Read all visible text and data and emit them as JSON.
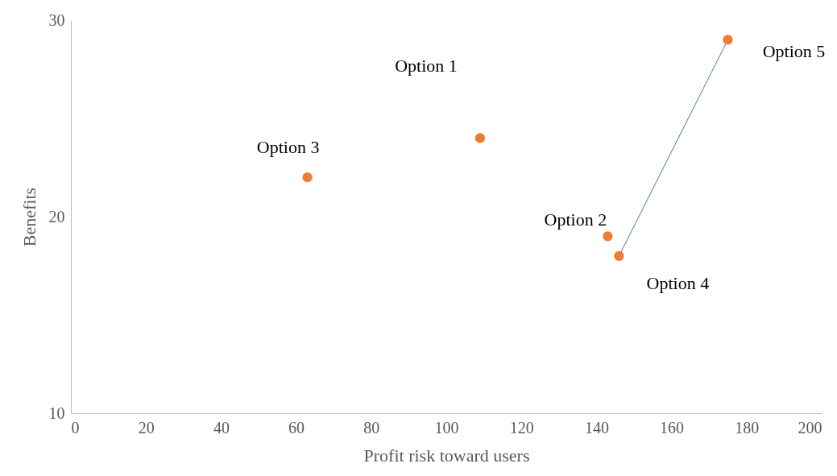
{
  "chart_data": {
    "type": "scatter",
    "xlabel": "Profit risk toward users",
    "ylabel": "Benefits",
    "xlim": [
      0,
      200
    ],
    "xticks": [
      0,
      20,
      40,
      60,
      80,
      100,
      120,
      140,
      160,
      180,
      200
    ],
    "ylim": [
      10,
      30
    ],
    "yticks": [
      10,
      20,
      30
    ],
    "grid": false,
    "series": [
      {
        "type": "line",
        "marker": "none",
        "color": "#4472c4",
        "x": [
          146,
          175
        ],
        "values": [
          18,
          29
        ]
      },
      {
        "marker": "circle",
        "color": "#ed7d31",
        "x": [
          109,
          143,
          63,
          146,
          175
        ],
        "values": [
          24,
          19,
          22,
          18,
          29
        ]
      }
    ],
    "annotations": [
      "Option 1",
      {
        "text": "Option 2",
        "x": 143,
        "y": 19
      },
      {
        "text": "Option 3",
        "x": 63,
        "y": 22
      },
      {
        "text": "Option 4",
        "x": 146,
        "y": 18
      },
      {
        "text": "Option 5",
        "x": 175,
        "y": 29
      }
    ]
  }
}
